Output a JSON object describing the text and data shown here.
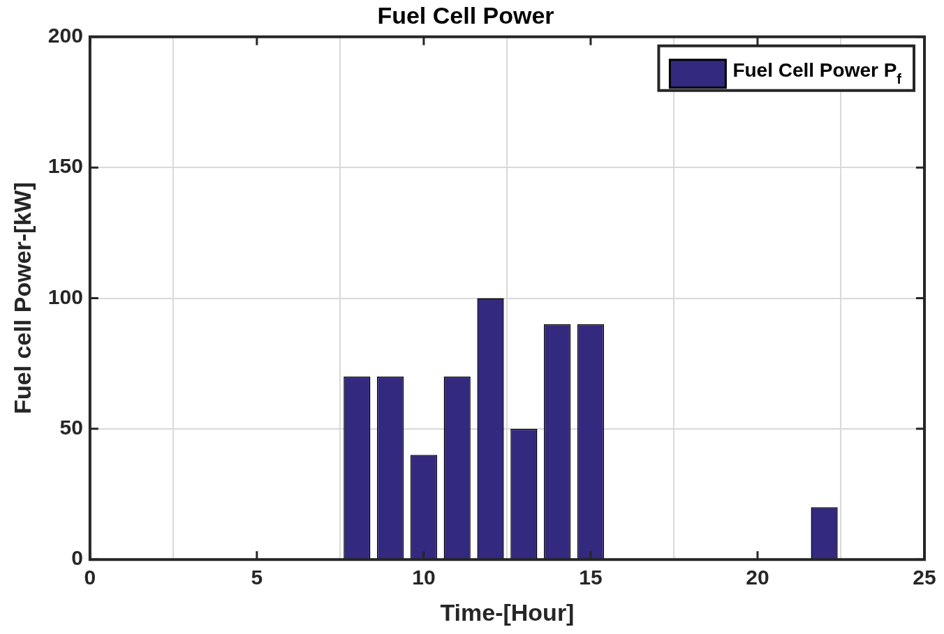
{
  "chart_data": {
    "type": "bar",
    "title": "Fuel Cell Power",
    "xlabel": "Time-[Hour]",
    "ylabel": "Fuel cell Power-[kW]",
    "x": [
      8,
      9,
      10,
      11,
      12,
      13,
      14,
      15,
      22
    ],
    "series": [
      {
        "name": "Fuel Cell Power P$_{f}$",
        "color": "#33297f",
        "values": [
          70,
          70,
          40,
          70,
          100,
          50,
          90,
          90,
          20
        ]
      }
    ],
    "xlim": [
      0,
      25
    ],
    "xticks": [
      0,
      5,
      10,
      15,
      20,
      25
    ],
    "ylim": [
      0,
      200
    ],
    "yticks": [
      0,
      50,
      100,
      150,
      200
    ],
    "grid": true,
    "legend": "top right"
  }
}
